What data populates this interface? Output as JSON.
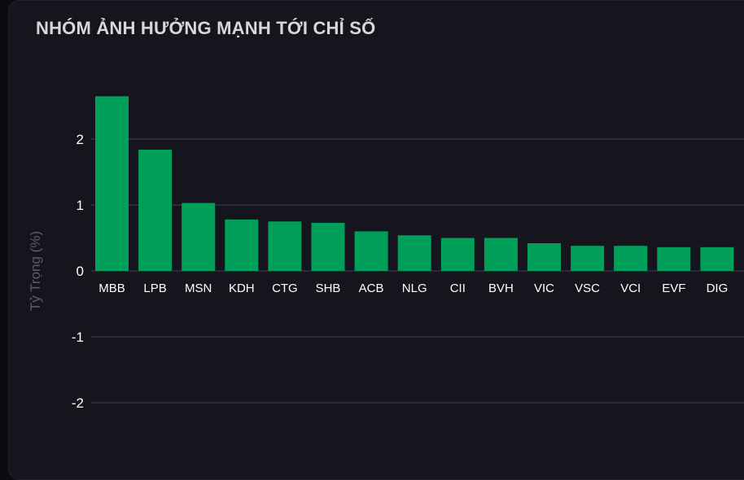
{
  "chart_data": {
    "type": "bar",
    "title": "NHÓM ẢNH HƯỞNG MẠNH TỚI CHỈ SỐ",
    "xlabel": "",
    "ylabel": "Tỷ Trọng (%)",
    "ylim": [
      -2.5,
      2.5
    ],
    "yticks": [
      2,
      1,
      0,
      -1,
      -2
    ],
    "tick_labels": [
      "2",
      "1",
      "0",
      "-1",
      "-2"
    ],
    "grid": true,
    "categories": [
      "MBB",
      "LPB",
      "MSN",
      "KDH",
      "CTG",
      "SHB",
      "ACB",
      "NLG",
      "CII",
      "BVH",
      "VIC",
      "VSC",
      "VCI",
      "EVF",
      "DIG"
    ],
    "values": [
      2.65,
      1.84,
      1.03,
      0.78,
      0.75,
      0.73,
      0.6,
      0.54,
      0.5,
      0.5,
      0.42,
      0.38,
      0.38,
      0.36,
      0.36
    ],
    "bar_color": "#00a05a",
    "grid_color": "#34323c"
  }
}
